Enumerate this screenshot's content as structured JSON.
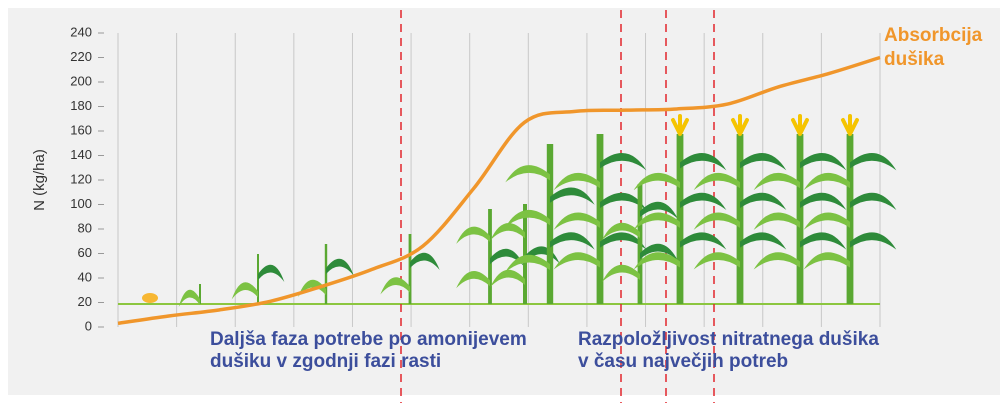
{
  "chart_data": {
    "type": "line",
    "ylabel": "N (kg/ha)",
    "categories": [
      null,
      null,
      null,
      null,
      null,
      null,
      null,
      null,
      null,
      null,
      null,
      null,
      null,
      null,
      null,
      null
    ],
    "series": [
      {
        "name": "Absorbcija dušika",
        "color": "#f0962b",
        "values": [
          3,
          9,
          14,
          21,
          33,
          47,
          66,
          113,
          167,
          176,
          177,
          178,
          182,
          196,
          207,
          220
        ]
      }
    ],
    "ylim": [
      0,
      240
    ],
    "yticks": [
      0,
      20,
      40,
      60,
      80,
      100,
      120,
      140,
      160,
      180,
      200,
      220,
      240
    ],
    "grid": true,
    "annotations": [
      {
        "lines": [
          "Daljša faza potrebe po amonijevem",
          "dušiku v zgodnji fazi rasti"
        ]
      },
      {
        "lines": [
          "Razpoložljivost nitratnega dušika",
          "v času največjih potreb"
        ]
      }
    ]
  }
}
